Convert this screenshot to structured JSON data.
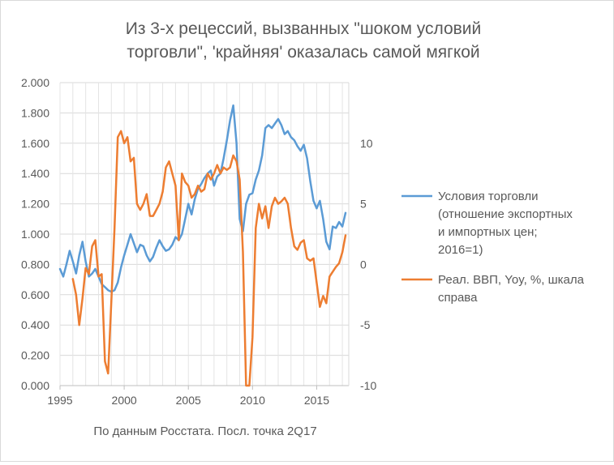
{
  "chart_data": {
    "type": "line",
    "title_lines": [
      "Из 3-х рецессий, вызванных \"шоком условий",
      "торговли\", 'крайняя' оказалась самой мягкой"
    ],
    "source_note": "По данным Росстата. Посл. точка 2Q17",
    "x_ticks": [
      "1995",
      "2000",
      "2005",
      "2010",
      "2015"
    ],
    "xlim": [
      1995,
      2017.5
    ],
    "y_left_ticks": [
      "0.000",
      "0.200",
      "0.400",
      "0.600",
      "0.800",
      "1.000",
      "1.200",
      "1.400",
      "1.600",
      "1.800",
      "2.000"
    ],
    "ylim_left": [
      0,
      2
    ],
    "y_right_ticks": [
      "-10",
      "-5",
      "0",
      "5",
      "10"
    ],
    "ylim_right": [
      -10,
      15
    ],
    "grid": true,
    "legend_position": "right",
    "series": [
      {
        "name": "Условия торговли (отношение экспортных и импортных цен; 2016=1)",
        "legend_lines": [
          "Условия торговли",
          "(отношение экспортных",
          "и импортных цен;",
          "2016=1)"
        ],
        "axis": "left",
        "color": "#5b9bd5",
        "x": [
          1995.0,
          1995.25,
          1995.5,
          1995.75,
          1996.0,
          1996.25,
          1996.5,
          1996.75,
          1997.0,
          1997.25,
          1997.5,
          1997.75,
          1998.0,
          1998.25,
          1998.5,
          1998.75,
          1999.0,
          1999.25,
          1999.5,
          1999.75,
          2000.0,
          2000.25,
          2000.5,
          2000.75,
          2001.0,
          2001.25,
          2001.5,
          2001.75,
          2002.0,
          2002.25,
          2002.5,
          2002.75,
          2003.0,
          2003.25,
          2003.5,
          2003.75,
          2004.0,
          2004.25,
          2004.5,
          2004.75,
          2005.0,
          2005.25,
          2005.5,
          2005.75,
          2006.0,
          2006.25,
          2006.5,
          2006.75,
          2007.0,
          2007.25,
          2007.5,
          2007.75,
          2008.0,
          2008.25,
          2008.5,
          2008.75,
          2009.0,
          2009.25,
          2009.5,
          2009.75,
          2010.0,
          2010.25,
          2010.5,
          2010.75,
          2011.0,
          2011.25,
          2011.5,
          2011.75,
          2012.0,
          2012.25,
          2012.5,
          2012.75,
          2013.0,
          2013.25,
          2013.5,
          2013.75,
          2014.0,
          2014.25,
          2014.5,
          2014.75,
          2015.0,
          2015.25,
          2015.5,
          2015.75,
          2016.0,
          2016.25,
          2016.5,
          2016.75,
          2017.0,
          2017.25
        ],
        "values": [
          0.77,
          0.72,
          0.8,
          0.89,
          0.82,
          0.74,
          0.86,
          0.95,
          0.82,
          0.72,
          0.74,
          0.77,
          0.72,
          0.67,
          0.65,
          0.63,
          0.62,
          0.63,
          0.68,
          0.78,
          0.86,
          0.93,
          1.0,
          0.94,
          0.88,
          0.93,
          0.92,
          0.86,
          0.82,
          0.85,
          0.91,
          0.96,
          0.92,
          0.89,
          0.9,
          0.93,
          0.98,
          0.96,
          1.0,
          1.1,
          1.2,
          1.13,
          1.23,
          1.3,
          1.33,
          1.37,
          1.4,
          1.42,
          1.32,
          1.38,
          1.4,
          1.5,
          1.62,
          1.75,
          1.85,
          1.6,
          1.1,
          1.02,
          1.2,
          1.26,
          1.27,
          1.36,
          1.42,
          1.52,
          1.7,
          1.72,
          1.7,
          1.73,
          1.76,
          1.72,
          1.66,
          1.68,
          1.64,
          1.62,
          1.58,
          1.55,
          1.59,
          1.5,
          1.35,
          1.22,
          1.17,
          1.22,
          1.1,
          0.95,
          0.9,
          1.05,
          1.04,
          1.08,
          1.05,
          1.14
        ]
      },
      {
        "name": "Реал. ВВП, Yoy, %, шкала справа",
        "legend_lines": [
          "Реал. ВВП, Yoy, %, шкала",
          "справа"
        ],
        "axis": "right",
        "color": "#ed7d31",
        "x": [
          1996.0,
          1996.25,
          1996.5,
          1996.75,
          1997.0,
          1997.25,
          1997.5,
          1997.75,
          1998.0,
          1998.25,
          1998.5,
          1998.75,
          1999.0,
          1999.25,
          1999.5,
          1999.75,
          2000.0,
          2000.25,
          2000.5,
          2000.75,
          2001.0,
          2001.25,
          2001.5,
          2001.75,
          2002.0,
          2002.25,
          2002.5,
          2002.75,
          2003.0,
          2003.25,
          2003.5,
          2003.75,
          2004.0,
          2004.25,
          2004.5,
          2004.75,
          2005.0,
          2005.25,
          2005.5,
          2005.75,
          2006.0,
          2006.25,
          2006.5,
          2006.75,
          2007.0,
          2007.25,
          2007.5,
          2007.75,
          2008.0,
          2008.25,
          2008.5,
          2008.75,
          2009.0,
          2009.25,
          2009.5,
          2009.75,
          2010.0,
          2010.25,
          2010.5,
          2010.75,
          2011.0,
          2011.25,
          2011.5,
          2011.75,
          2012.0,
          2012.25,
          2012.5,
          2012.75,
          2013.0,
          2013.25,
          2013.5,
          2013.75,
          2014.0,
          2014.25,
          2014.5,
          2014.75,
          2015.0,
          2015.25,
          2015.5,
          2015.75,
          2016.0,
          2016.25,
          2016.5,
          2016.75,
          2017.0,
          2017.25
        ],
        "values": [
          -1.2,
          -2.5,
          -5.0,
          -2.8,
          -0.3,
          -0.8,
          1.5,
          2.0,
          -1.0,
          -0.8,
          -8.0,
          -9.0,
          -3.0,
          3.0,
          10.5,
          11.0,
          10.0,
          10.5,
          8.5,
          8.8,
          5.0,
          4.5,
          5.0,
          5.8,
          4.0,
          4.0,
          4.5,
          5.0,
          6.0,
          8.0,
          8.5,
          7.5,
          6.5,
          2.0,
          7.5,
          6.8,
          6.5,
          5.5,
          5.8,
          6.5,
          6.0,
          6.2,
          7.5,
          7.0,
          7.5,
          8.2,
          7.5,
          8.0,
          7.8,
          8.0,
          9.0,
          8.5,
          7.0,
          1.0,
          -10.0,
          -10.0,
          -6.0,
          3.0,
          5.0,
          3.8,
          4.8,
          3.0,
          4.8,
          5.5,
          5.0,
          5.2,
          5.5,
          5.0,
          3.0,
          1.5,
          1.2,
          1.8,
          2.0,
          0.5,
          0.3,
          0.5,
          -1.5,
          -3.5,
          -2.6,
          -3.2,
          -1.0,
          -0.6,
          -0.2,
          0.1,
          1.0,
          2.4
        ]
      }
    ]
  }
}
